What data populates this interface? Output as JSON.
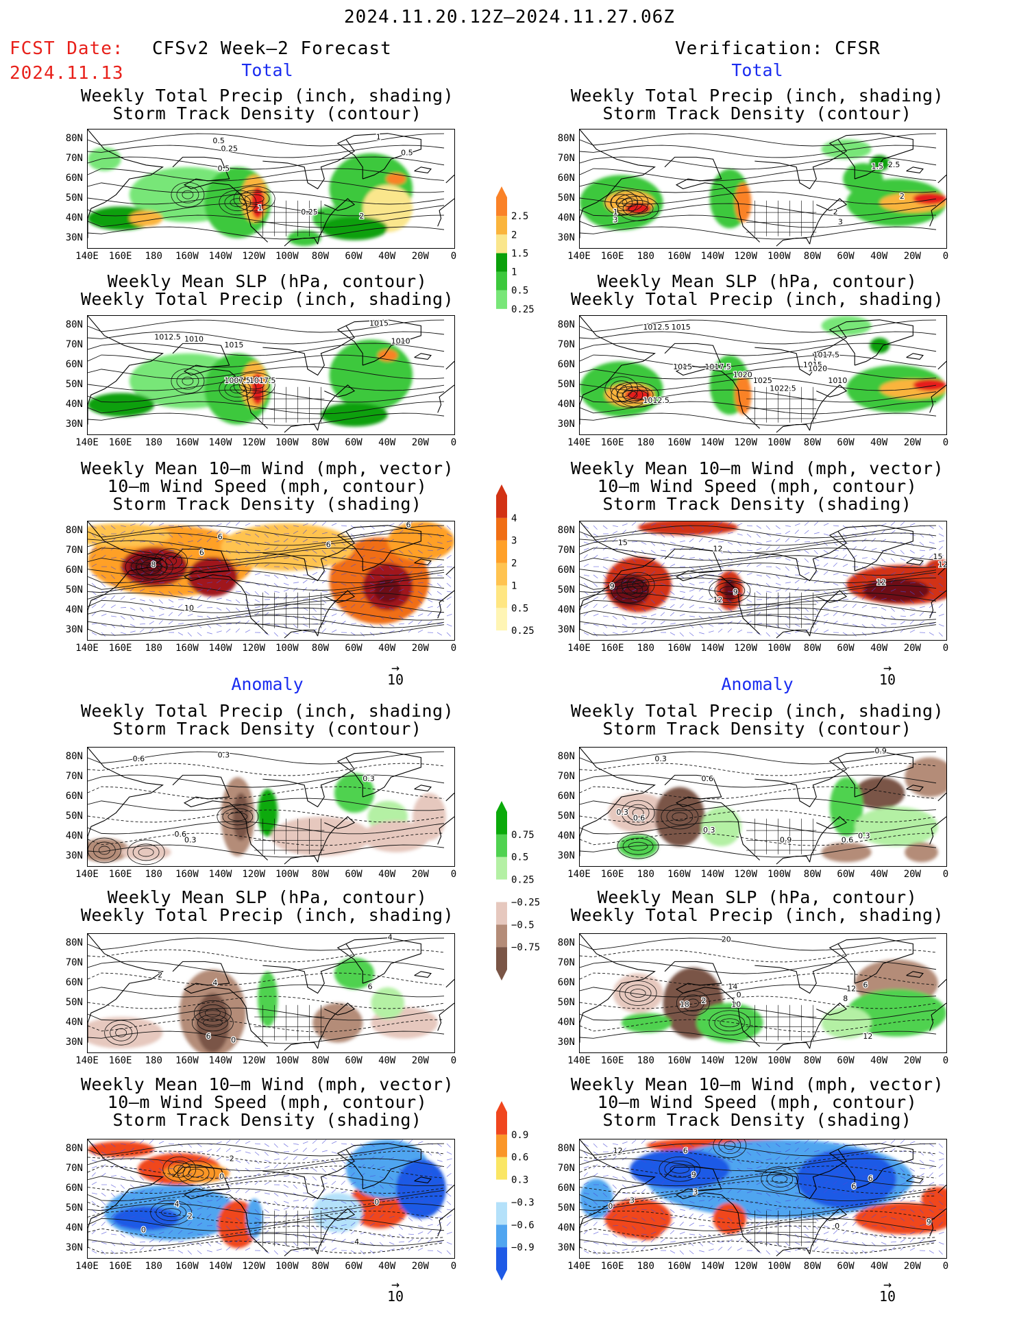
{
  "header": {
    "date_range": "2024.11.20.12Z—2024.11.27.06Z",
    "fcst_label": "FCST Date:",
    "fcst_date": "2024.11.13",
    "left_title": "CFSv2 Week—2 Forecast",
    "right_title": "Verification: CFSR"
  },
  "sections": {
    "total": "Total",
    "anomaly": "Anomaly"
  },
  "panel_titles": {
    "precip_storm": [
      "Weekly Total Precip (inch, shading)",
      "Storm Track Density (contour)"
    ],
    "slp_precip": [
      "Weekly Mean SLP (hPa, contour)",
      "Weekly Total Precip (inch, shading)"
    ],
    "wind_storm": [
      "Weekly Mean 10—m Wind (mph, vector)",
      "10—m Wind Speed (mph, contour)",
      "Storm Track Density (shading)"
    ]
  },
  "axes": {
    "lat_ticks": [
      "80N",
      "70N",
      "60N",
      "50N",
      "40N",
      "30N"
    ],
    "lon_ticks": [
      "140E",
      "160E",
      "180",
      "160W",
      "140W",
      "120W",
      "100W",
      "80W",
      "60W",
      "40W",
      "20W",
      "0"
    ]
  },
  "colorbars": {
    "precip_total": [
      "2.5",
      "2",
      "1.5",
      "1",
      "0.5",
      "0.25"
    ],
    "storm_total": [
      "4",
      "3",
      "2",
      "1",
      "0.5",
      "0.25"
    ],
    "precip_anom": [
      "0.75",
      "0.5",
      "0.25",
      "−0.25",
      "−0.5",
      "−0.75"
    ],
    "storm_anom": [
      "0.9",
      "0.6",
      "0.3",
      "−0.3",
      "−0.6",
      "−0.9"
    ]
  },
  "vector_ref": "10",
  "contour_labels": {
    "t_fc_p": [
      "0.5",
      "0.25",
      "1",
      "0.5",
      "1",
      "0.25",
      "2",
      "0.5"
    ],
    "t_vr_p": [
      "1",
      "1.5",
      "2",
      "3",
      "2",
      "3",
      "2.5"
    ],
    "t_fc_s": [
      "1012.5",
      "1010",
      "1015",
      "1007.5",
      "1017.5",
      "1015",
      "1010"
    ],
    "t_vr_s": [
      "1012.5",
      "1015",
      "1015",
      "1017.5",
      "1020",
      "1025",
      "1022.5",
      "1015",
      "1020",
      "1010",
      "1012.5",
      "1017.5"
    ],
    "t_fc_w": [
      "6",
      "6",
      "8",
      "10",
      "6",
      "6"
    ],
    "t_vr_w": [
      "15",
      "12",
      "9",
      "12",
      "9",
      "12",
      "15",
      "12"
    ],
    "a_fc_p": [
      "0.6",
      "0.3",
      "0.3",
      "0.6",
      "0.3"
    ],
    "a_vr_p": [
      "0.3",
      "0.9",
      "0.6",
      "0.3",
      "0.6",
      "0.3",
      "0.9",
      "0.6",
      "0.3"
    ],
    "a_fc_s": [
      "4",
      "2",
      "4",
      "6",
      "6",
      "0"
    ],
    "a_vr_s": [
      "20",
      "18",
      "2",
      "0",
      "14",
      "10",
      "12",
      "8",
      "12",
      "6"
    ],
    "a_fc_w": [
      "2",
      "0",
      "4",
      "2",
      "0",
      "0",
      "4"
    ],
    "a_vr_w": [
      "12",
      "6",
      "9",
      "3",
      "0",
      "3",
      "6",
      "6",
      "0",
      "9"
    ]
  },
  "palette": {
    "precip": [
      "#b4f0a4",
      "#78e678",
      "#3cc83c",
      "#0aa00a",
      "#fae68c",
      "#fab43c",
      "#fa8228",
      "#e61e1e"
    ],
    "storm": [
      "#fff5b4",
      "#ffe682",
      "#ffc350",
      "#ffa028",
      "#f06e14",
      "#d23214",
      "#a0141e",
      "#6e0a14"
    ],
    "precip_anom_neg": [
      "#e6c8be",
      "#b48c78",
      "#7a5546"
    ],
    "precip_anom_pos": [
      "#b4f0a4",
      "#50d250",
      "#0aaa0a"
    ],
    "storm_anom_neg": [
      "#b4e1fa",
      "#50a5f0",
      "#1e5ae6"
    ],
    "storm_anom_pos": [
      "#fae664",
      "#fa9628",
      "#f0461e"
    ]
  }
}
